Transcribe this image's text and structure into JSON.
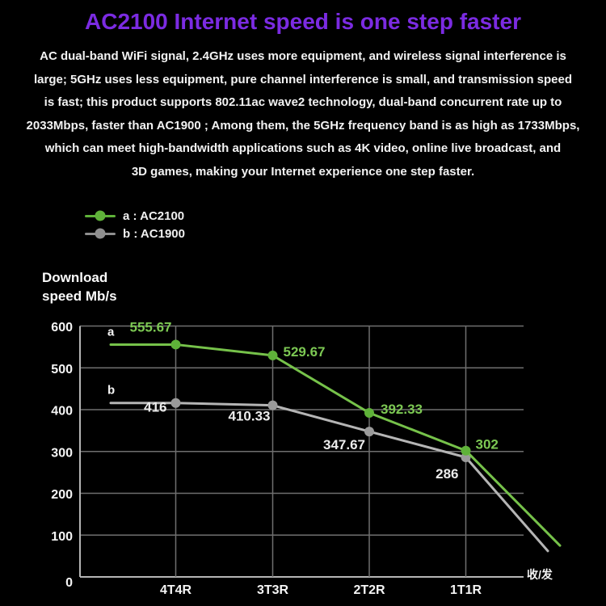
{
  "title": {
    "text": "AC2100 Internet speed is one step faster",
    "color": "#7b2be2"
  },
  "paragraph_lines": [
    "AC dual-band WiFi signal, 2.4GHz uses more equipment, and wireless signal interference is",
    "large; 5GHz uses less equipment, pure channel interference is small, and transmission speed",
    "is fast; this product supports 802.11ac wave2 technology, dual-band concurrent rate up to",
    "2033Mbps, faster than AC1900 ; Among them, the 5GHz frequency band is as high as 1733Mbps,",
    "which can meet high-bandwidth applications such as 4K video, online live broadcast, and",
    "3D games, making your Internet experience one step faster."
  ],
  "legend": {
    "items": [
      {
        "label": "a : AC2100",
        "color": "#5fb239"
      },
      {
        "label": "b : AC1900",
        "color": "#8f8f8f"
      }
    ]
  },
  "axis_title": {
    "line1": "Download",
    "line2": "speed Mb/s"
  },
  "chart_data": {
    "type": "line",
    "title": "",
    "ylabel": "Download speed Mb/s",
    "categories": [
      "4T4R",
      "3T3R",
      "2T2R",
      "1T1R"
    ],
    "x_axis_end_label": "收/发",
    "yticks": [
      "0",
      "100",
      "200",
      "300",
      "400",
      "500",
      "600"
    ],
    "ylim": [
      0,
      600
    ],
    "grid": true,
    "grid_color": "#6f6f6f",
    "axis_color": "#b5b5b5",
    "series": [
      {
        "id": "a",
        "point_letter": "a",
        "name": "a : AC2100",
        "line_color": "#76c24a",
        "marker_color": "#5fb239",
        "label_color": "#7cc853",
        "values": [
          555.67,
          529.67,
          392.33,
          302
        ],
        "labels": [
          "555.67",
          "529.67",
          "392.33",
          "302"
        ],
        "tail_value_estimate": 75
      },
      {
        "id": "b",
        "point_letter": "b",
        "name": "b : AC1900",
        "line_color": "#b5b5b5",
        "marker_color": "#9a9a9a",
        "label_color": "#ececec",
        "values": [
          416,
          410.33,
          347.67,
          286
        ],
        "labels": [
          "416",
          "410.33",
          "347.67",
          "286"
        ],
        "tail_value_estimate": 62
      }
    ]
  }
}
